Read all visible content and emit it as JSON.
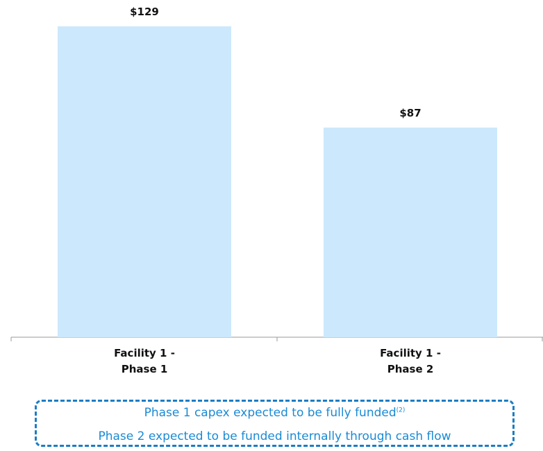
{
  "chart_data": {
    "type": "bar",
    "categories": [
      "Facility 1 - Phase 1",
      "Facility 1 - Phase 2"
    ],
    "values": [
      129,
      87
    ],
    "value_labels": [
      "$129",
      "$87"
    ],
    "color": "#cce8fc",
    "ylim": [
      0,
      129
    ],
    "annotations": [
      {
        "text": "Phase 1 capex expected to be fully funded",
        "note": "(2)"
      },
      {
        "text": "Phase 2 expected to be funded internally through cash flow"
      }
    ]
  }
}
